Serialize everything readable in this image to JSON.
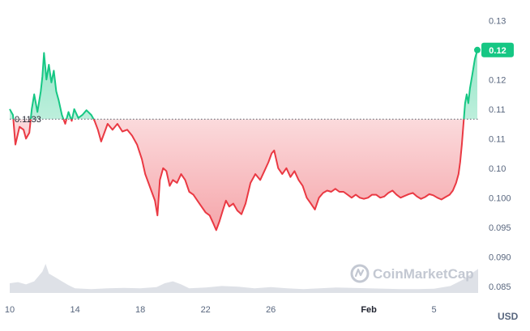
{
  "chart_data": {
    "type": "area",
    "unit": "USD",
    "reference_price": 0.1133,
    "reference_label": "0.1133",
    "current_price_label": "0.12",
    "y_ticks": [
      "0.13",
      "0.12",
      "0.12",
      "0.11",
      "0.11",
      "0.10",
      "0.100",
      "0.095",
      "0.090",
      "0.085"
    ],
    "y_tick_values": [
      0.13,
      0.125,
      0.12,
      0.115,
      0.11,
      0.105,
      0.1,
      0.095,
      0.09,
      0.085
    ],
    "x_ticks": [
      {
        "label": "10",
        "day": 0,
        "bold": false
      },
      {
        "label": "14",
        "day": 4,
        "bold": false
      },
      {
        "label": "18",
        "day": 8,
        "bold": false
      },
      {
        "label": "22",
        "day": 12,
        "bold": false
      },
      {
        "label": "26",
        "day": 16,
        "bold": false
      },
      {
        "label": "Feb",
        "day": 22,
        "bold": true
      },
      {
        "label": "5",
        "day": 26,
        "bold": false
      }
    ],
    "ylim": [
      0.0825,
      0.131
    ],
    "xlim": [
      0,
      28.7
    ],
    "grid": false,
    "watermark": "CoinMarketCap",
    "colors": {
      "up": "#16c784",
      "down": "#ea3943",
      "volume": "#d8dce3",
      "ref_line": "#5a5f6b",
      "badge": "#16c784"
    },
    "series": [
      {
        "values": [
          [
            0.0,
            0.115
          ],
          [
            0.2,
            0.114
          ],
          [
            0.35,
            0.109
          ],
          [
            0.6,
            0.112
          ],
          [
            0.85,
            0.1115
          ],
          [
            1.0,
            0.11
          ],
          [
            1.2,
            0.111
          ],
          [
            1.35,
            0.115
          ],
          [
            1.5,
            0.1175
          ],
          [
            1.7,
            0.1145
          ],
          [
            1.9,
            0.118
          ],
          [
            2.0,
            0.1205
          ],
          [
            2.1,
            0.1245
          ],
          [
            2.25,
            0.12
          ],
          [
            2.4,
            0.1225
          ],
          [
            2.55,
            0.1195
          ],
          [
            2.7,
            0.1215
          ],
          [
            2.85,
            0.118
          ],
          [
            3.0,
            0.1165
          ],
          [
            3.2,
            0.114
          ],
          [
            3.4,
            0.1125
          ],
          [
            3.6,
            0.1145
          ],
          [
            3.8,
            0.113
          ],
          [
            3.95,
            0.115
          ],
          [
            4.2,
            0.1135
          ],
          [
            4.45,
            0.114
          ],
          [
            4.7,
            0.1148
          ],
          [
            5.0,
            0.114
          ],
          [
            5.2,
            0.113
          ],
          [
            5.4,
            0.1115
          ],
          [
            5.6,
            0.1095
          ],
          [
            5.8,
            0.111
          ],
          [
            6.0,
            0.1125
          ],
          [
            6.3,
            0.1115
          ],
          [
            6.6,
            0.1125
          ],
          [
            6.9,
            0.1112
          ],
          [
            7.2,
            0.1115
          ],
          [
            7.5,
            0.1105
          ],
          [
            7.8,
            0.109
          ],
          [
            8.1,
            0.1065
          ],
          [
            8.3,
            0.104
          ],
          [
            8.5,
            0.1025
          ],
          [
            8.7,
            0.101
          ],
          [
            8.9,
            0.0995
          ],
          [
            9.05,
            0.097
          ],
          [
            9.2,
            0.103
          ],
          [
            9.4,
            0.105
          ],
          [
            9.6,
            0.1045
          ],
          [
            9.8,
            0.102
          ],
          [
            10.0,
            0.103
          ],
          [
            10.25,
            0.1025
          ],
          [
            10.5,
            0.104
          ],
          [
            10.75,
            0.103
          ],
          [
            11.0,
            0.101
          ],
          [
            11.25,
            0.1005
          ],
          [
            11.5,
            0.0995
          ],
          [
            11.75,
            0.0985
          ],
          [
            12.0,
            0.0975
          ],
          [
            12.25,
            0.097
          ],
          [
            12.5,
            0.0955
          ],
          [
            12.65,
            0.0945
          ],
          [
            12.85,
            0.096
          ],
          [
            13.05,
            0.0978
          ],
          [
            13.25,
            0.0995
          ],
          [
            13.45,
            0.0985
          ],
          [
            13.7,
            0.099
          ],
          [
            13.95,
            0.0978
          ],
          [
            14.2,
            0.0972
          ],
          [
            14.45,
            0.099
          ],
          [
            14.75,
            0.1025
          ],
          [
            15.05,
            0.104
          ],
          [
            15.35,
            0.103
          ],
          [
            15.6,
            0.1045
          ],
          [
            15.85,
            0.106
          ],
          [
            16.05,
            0.1075
          ],
          [
            16.2,
            0.108
          ],
          [
            16.45,
            0.105
          ],
          [
            16.7,
            0.104
          ],
          [
            16.95,
            0.105
          ],
          [
            17.2,
            0.1035
          ],
          [
            17.45,
            0.1045
          ],
          [
            17.7,
            0.103
          ],
          [
            17.95,
            0.102
          ],
          [
            18.2,
            0.1
          ],
          [
            18.45,
            0.099
          ],
          [
            18.7,
            0.098
          ],
          [
            18.95,
            0.1
          ],
          [
            19.2,
            0.1008
          ],
          [
            19.45,
            0.1012
          ],
          [
            19.7,
            0.101
          ],
          [
            19.95,
            0.1015
          ],
          [
            20.2,
            0.101
          ],
          [
            20.45,
            0.101
          ],
          [
            20.7,
            0.1005
          ],
          [
            20.95,
            0.1
          ],
          [
            21.2,
            0.1005
          ],
          [
            21.45,
            0.1
          ],
          [
            21.7,
            0.0998
          ],
          [
            21.95,
            0.1
          ],
          [
            22.2,
            0.1005
          ],
          [
            22.45,
            0.1005
          ],
          [
            22.7,
            0.1
          ],
          [
            22.95,
            0.1002
          ],
          [
            23.2,
            0.1008
          ],
          [
            23.45,
            0.1012
          ],
          [
            23.7,
            0.1005
          ],
          [
            23.95,
            0.1
          ],
          [
            24.2,
            0.1003
          ],
          [
            24.45,
            0.1006
          ],
          [
            24.7,
            0.1008
          ],
          [
            24.95,
            0.1002
          ],
          [
            25.2,
            0.0998
          ],
          [
            25.45,
            0.1001
          ],
          [
            25.7,
            0.1006
          ],
          [
            25.95,
            0.1004
          ],
          [
            26.2,
            0.1
          ],
          [
            26.45,
            0.0997
          ],
          [
            26.7,
            0.1001
          ],
          [
            26.95,
            0.1005
          ],
          [
            27.15,
            0.1012
          ],
          [
            27.35,
            0.1025
          ],
          [
            27.5,
            0.104
          ],
          [
            27.6,
            0.106
          ],
          [
            27.7,
            0.109
          ],
          [
            27.8,
            0.1125
          ],
          [
            27.9,
            0.116
          ],
          [
            28.0,
            0.1175
          ],
          [
            28.1,
            0.116
          ],
          [
            28.2,
            0.1185
          ],
          [
            28.35,
            0.121
          ],
          [
            28.5,
            0.1235
          ],
          [
            28.65,
            0.125
          ]
        ]
      }
    ],
    "volume": [
      [
        0.0,
        0.25
      ],
      [
        0.5,
        0.28
      ],
      [
        1.0,
        0.22
      ],
      [
        1.5,
        0.3
      ],
      [
        2.0,
        0.55
      ],
      [
        2.2,
        0.75
      ],
      [
        2.4,
        0.5
      ],
      [
        2.8,
        0.4
      ],
      [
        3.2,
        0.3
      ],
      [
        3.6,
        0.2
      ],
      [
        4.0,
        0.12
      ],
      [
        5.0,
        0.1
      ],
      [
        6.0,
        0.12
      ],
      [
        7.0,
        0.13
      ],
      [
        8.0,
        0.12
      ],
      [
        9.0,
        0.15
      ],
      [
        9.5,
        0.25
      ],
      [
        10.0,
        0.3
      ],
      [
        10.5,
        0.22
      ],
      [
        11.0,
        0.12
      ],
      [
        12.0,
        0.14
      ],
      [
        13.0,
        0.18
      ],
      [
        14.0,
        0.16
      ],
      [
        15.0,
        0.12
      ],
      [
        16.0,
        0.15
      ],
      [
        17.0,
        0.12
      ],
      [
        18.0,
        0.1
      ],
      [
        19.0,
        0.12
      ],
      [
        20.0,
        0.14
      ],
      [
        21.0,
        0.13
      ],
      [
        22.0,
        0.12
      ],
      [
        23.0,
        0.11
      ],
      [
        24.0,
        0.1
      ],
      [
        25.0,
        0.1
      ],
      [
        26.0,
        0.11
      ],
      [
        27.0,
        0.18
      ],
      [
        27.8,
        0.35
      ],
      [
        28.3,
        0.5
      ],
      [
        28.7,
        0.62
      ]
    ]
  }
}
